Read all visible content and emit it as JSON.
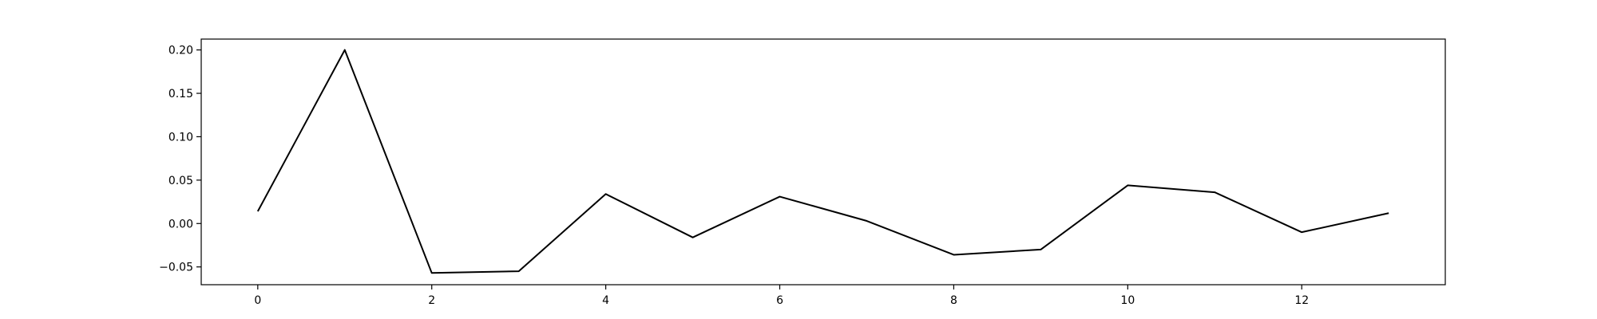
{
  "chart_data": {
    "type": "line",
    "title": "",
    "xlabel": "",
    "ylabel": "",
    "x": [
      0,
      1,
      2,
      3,
      4,
      5,
      6,
      7,
      8,
      9,
      10,
      11,
      12,
      13
    ],
    "series": [
      {
        "values": [
          0.014,
          0.2,
          -0.057,
          -0.055,
          0.034,
          -0.016,
          0.031,
          0.003,
          -0.036,
          -0.03,
          0.044,
          0.036,
          -0.01,
          0.012
        ],
        "color": "#000000"
      }
    ],
    "xlim": [
      -0.65,
      13.65
    ],
    "ylim": [
      -0.0705,
      0.2125
    ],
    "xticks": [
      0,
      2,
      4,
      6,
      8,
      10,
      12
    ],
    "xtick_labels": [
      "0",
      "2",
      "4",
      "6",
      "8",
      "10",
      "12"
    ],
    "yticks": [
      -0.05,
      0.0,
      0.05,
      0.1,
      0.15,
      0.2
    ],
    "ytick_labels": [
      "−0.05",
      "0.00",
      "0.05",
      "0.10",
      "0.15",
      "0.20"
    ],
    "grid": false,
    "legend": "none"
  }
}
